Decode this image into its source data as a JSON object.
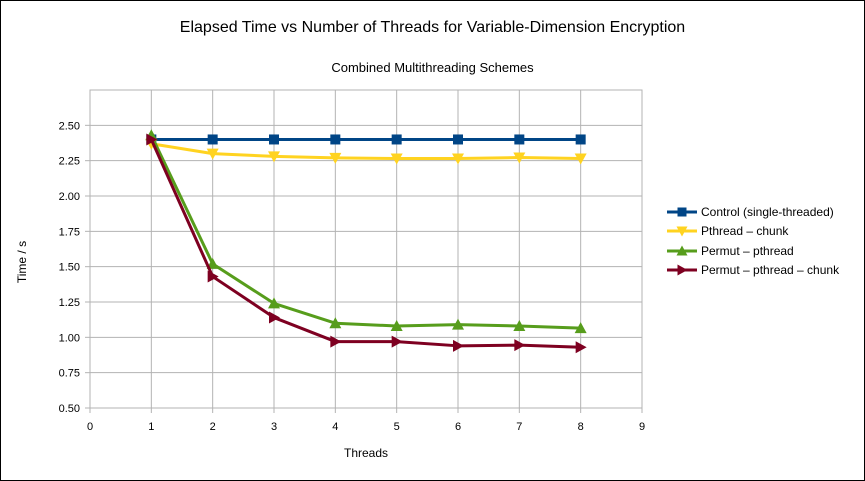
{
  "chart_data": {
    "type": "line",
    "title": "Elapsed Time vs Number of Threads for Variable-Dimension Encryption",
    "subtitle": "Combined Multithreading Schemes",
    "xlabel": "Threads",
    "ylabel": "Time / s",
    "xlim": [
      0,
      9
    ],
    "ylim": [
      0.5,
      2.75
    ],
    "x_ticks": [
      "0",
      "1",
      "2",
      "3",
      "4",
      "5",
      "6",
      "7",
      "8",
      "9"
    ],
    "y_ticks": [
      "0.50",
      "0.75",
      "1.00",
      "1.25",
      "1.50",
      "1.75",
      "2.00",
      "2.25",
      "2.50"
    ],
    "grid": true,
    "legend_position": "right",
    "x": [
      1,
      2,
      3,
      4,
      5,
      6,
      7,
      8
    ],
    "series": [
      {
        "name": "Control (single-threaded)",
        "color": "#004586",
        "marker": "square",
        "values": [
          2.4,
          2.4,
          2.4,
          2.4,
          2.4,
          2.4,
          2.4,
          2.4
        ]
      },
      {
        "name": "Pthread – chunk",
        "color": "#ffd320",
        "marker": "triangle-down",
        "values": [
          2.37,
          2.3,
          2.28,
          2.27,
          2.265,
          2.265,
          2.272,
          2.265
        ]
      },
      {
        "name": "Permut – pthread",
        "color": "#579d1c",
        "marker": "triangle-up",
        "values": [
          2.43,
          1.52,
          1.24,
          1.1,
          1.08,
          1.09,
          1.08,
          1.065
        ]
      },
      {
        "name": "Permut – pthread – chunk",
        "color": "#7e0021",
        "marker": "triangle-right",
        "values": [
          2.4,
          1.43,
          1.14,
          0.97,
          0.97,
          0.94,
          0.945,
          0.93
        ]
      }
    ]
  }
}
